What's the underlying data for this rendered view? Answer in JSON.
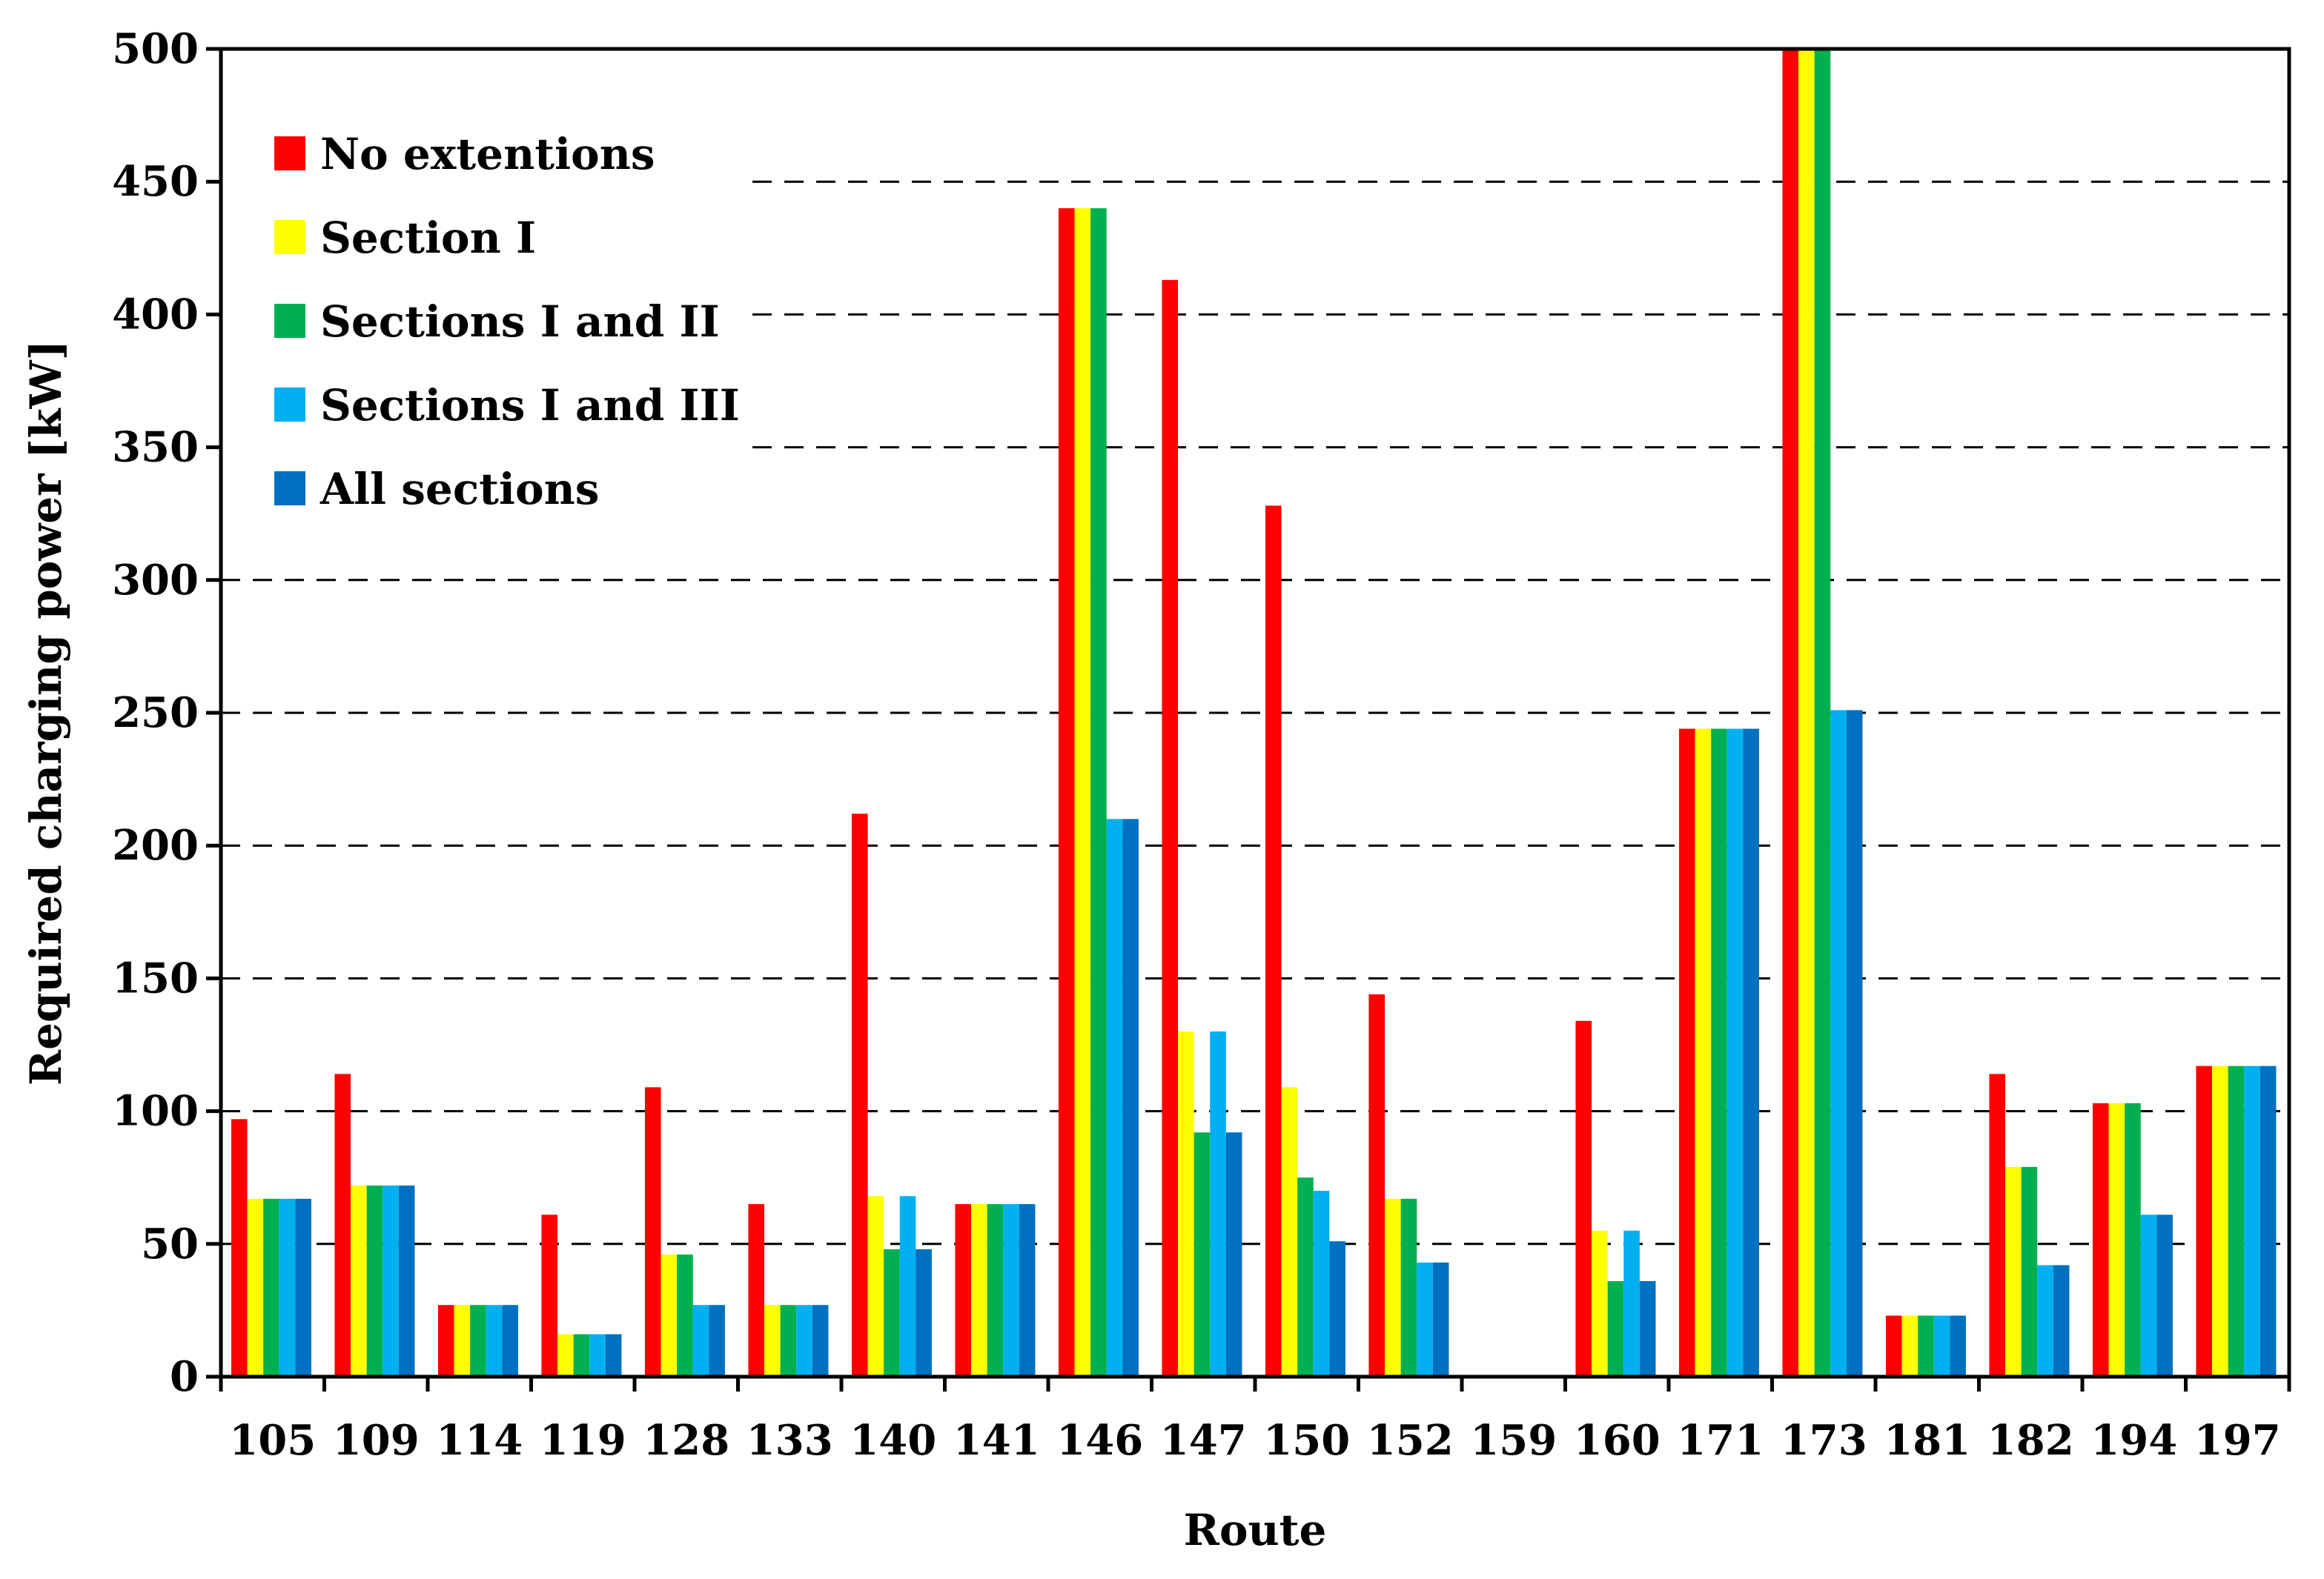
{
  "chart_data": {
    "type": "bar",
    "title": "",
    "xlabel": "Route",
    "ylabel": "Required charging power [kW]",
    "ylim": [
      0,
      500
    ],
    "yticks": [
      0,
      50,
      100,
      150,
      200,
      250,
      300,
      350,
      400,
      450,
      500
    ],
    "grid": true,
    "legend_position": "top-left",
    "categories": [
      "105",
      "109",
      "114",
      "119",
      "128",
      "133",
      "140",
      "141",
      "146",
      "147",
      "150",
      "152",
      "159",
      "160",
      "171",
      "173",
      "181",
      "182",
      "194",
      "197"
    ],
    "series": [
      {
        "name": "No extentions",
        "color": "#ff0000",
        "values": [
          97,
          114,
          27,
          61,
          109,
          65,
          212,
          65,
          440,
          413,
          328,
          144,
          0,
          134,
          244,
          500,
          23,
          114,
          103,
          117
        ]
      },
      {
        "name": "Section I",
        "color": "#ffff00",
        "values": [
          67,
          72,
          27,
          16,
          46,
          27,
          68,
          65,
          440,
          130,
          109,
          67,
          0,
          55,
          244,
          500,
          23,
          79,
          103,
          117
        ]
      },
      {
        "name": "Sections I and II",
        "color": "#00b050",
        "values": [
          67,
          72,
          27,
          16,
          46,
          27,
          48,
          65,
          440,
          92,
          75,
          67,
          0,
          36,
          244,
          500,
          23,
          79,
          103,
          117
        ]
      },
      {
        "name": "Sections I and III",
        "color": "#00b0f0",
        "values": [
          67,
          72,
          27,
          16,
          27,
          27,
          68,
          65,
          210,
          130,
          70,
          43,
          0,
          55,
          244,
          251,
          23,
          42,
          61,
          117
        ]
      },
      {
        "name": "All sections",
        "color": "#0070c0",
        "values": [
          67,
          72,
          27,
          16,
          27,
          27,
          48,
          65,
          210,
          92,
          51,
          43,
          0,
          36,
          244,
          251,
          23,
          42,
          61,
          117
        ]
      }
    ]
  }
}
